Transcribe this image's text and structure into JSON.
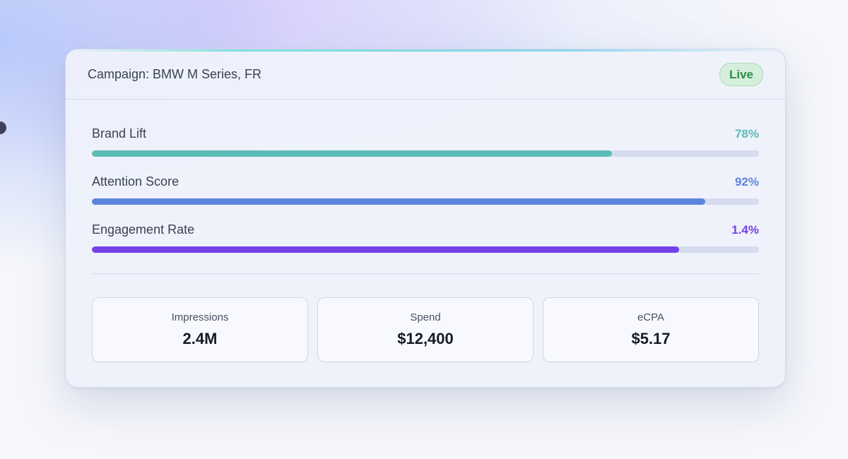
{
  "card": {
    "title": "Campaign: BMW M Series, FR",
    "status": "Live"
  },
  "metrics": [
    {
      "label": "Brand Lift",
      "value": "78%",
      "progress": 0.78,
      "color": "#5bbcb5"
    },
    {
      "label": "Attention Score",
      "value": "92%",
      "progress": 0.92,
      "color": "#5b84dd"
    },
    {
      "label": "Engagement Rate",
      "value": "1.4%",
      "progress": 0.88,
      "color": "#7441e8"
    }
  ],
  "stats": [
    {
      "label": "Impressions",
      "value": "2.4M"
    },
    {
      "label": "Spend",
      "value": "$12,400"
    },
    {
      "label": "eCPA",
      "value": "$5.17"
    }
  ],
  "colors": {
    "live_text": "#2e8b47",
    "live_bg": "#d5efdc",
    "track": "#d6dcee"
  }
}
